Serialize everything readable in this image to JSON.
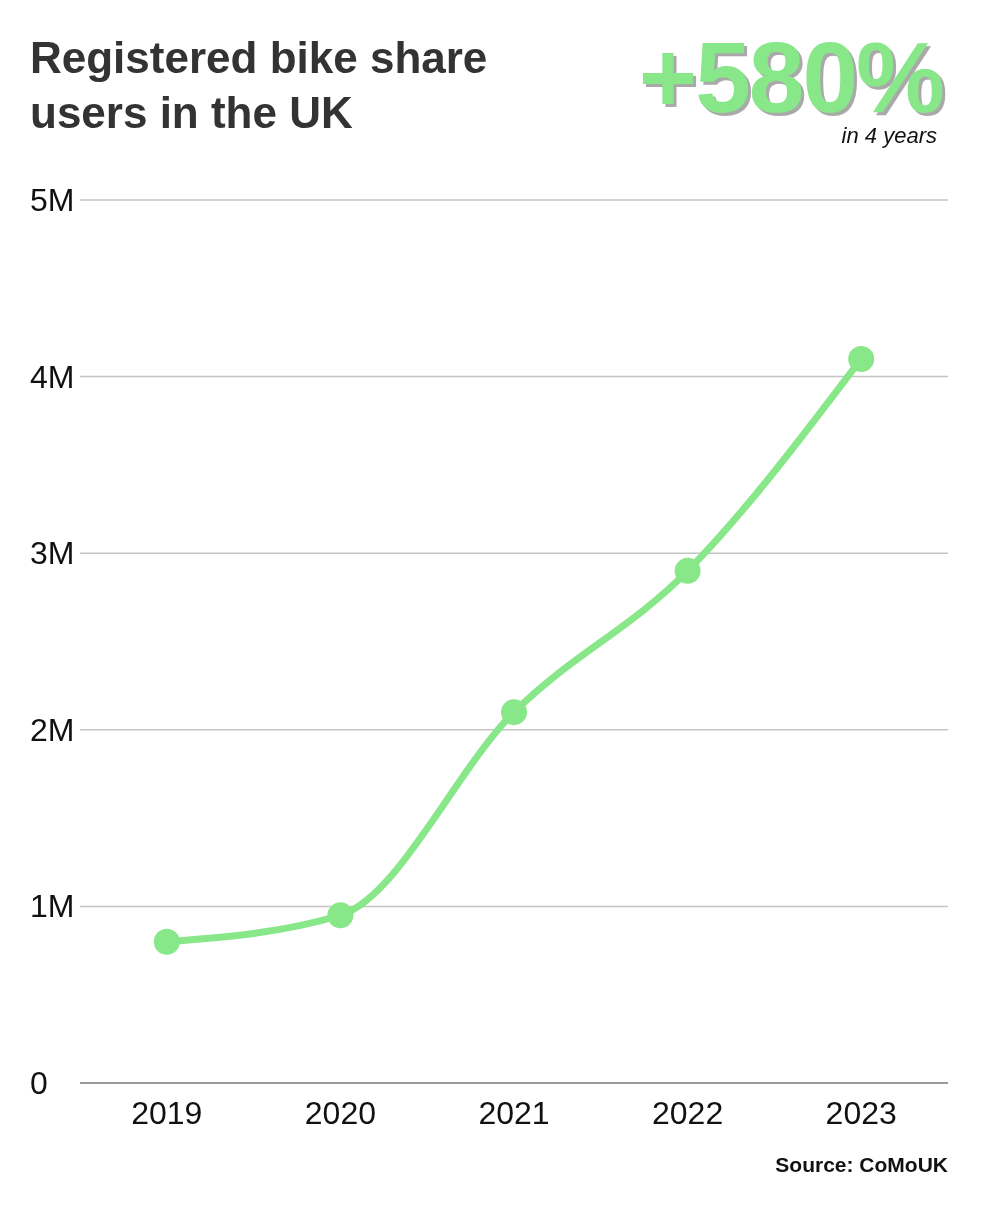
{
  "chart_data": {
    "type": "line",
    "title": "Registered bike share users in the UK",
    "categories": [
      "2019",
      "2020",
      "2021",
      "2022",
      "2023"
    ],
    "values": [
      800000,
      950000,
      2100000,
      2900000,
      4100000
    ],
    "color": "#88e788",
    "ylim": [
      0,
      5000000
    ],
    "yticks": [
      0,
      {
        "value": 1000000,
        "label": "1M"
      },
      {
        "value": 2000000,
        "label": "2M"
      },
      {
        "value": 3000000,
        "label": "3M"
      },
      {
        "value": 4000000,
        "label": "4M"
      },
      {
        "value": 5000000,
        "label": "5M"
      }
    ],
    "grid": "y",
    "marker": "circle",
    "line_style": "solid",
    "annotations": [
      "+580%",
      "in 4 years",
      "Source: CoMoUK"
    ]
  }
}
